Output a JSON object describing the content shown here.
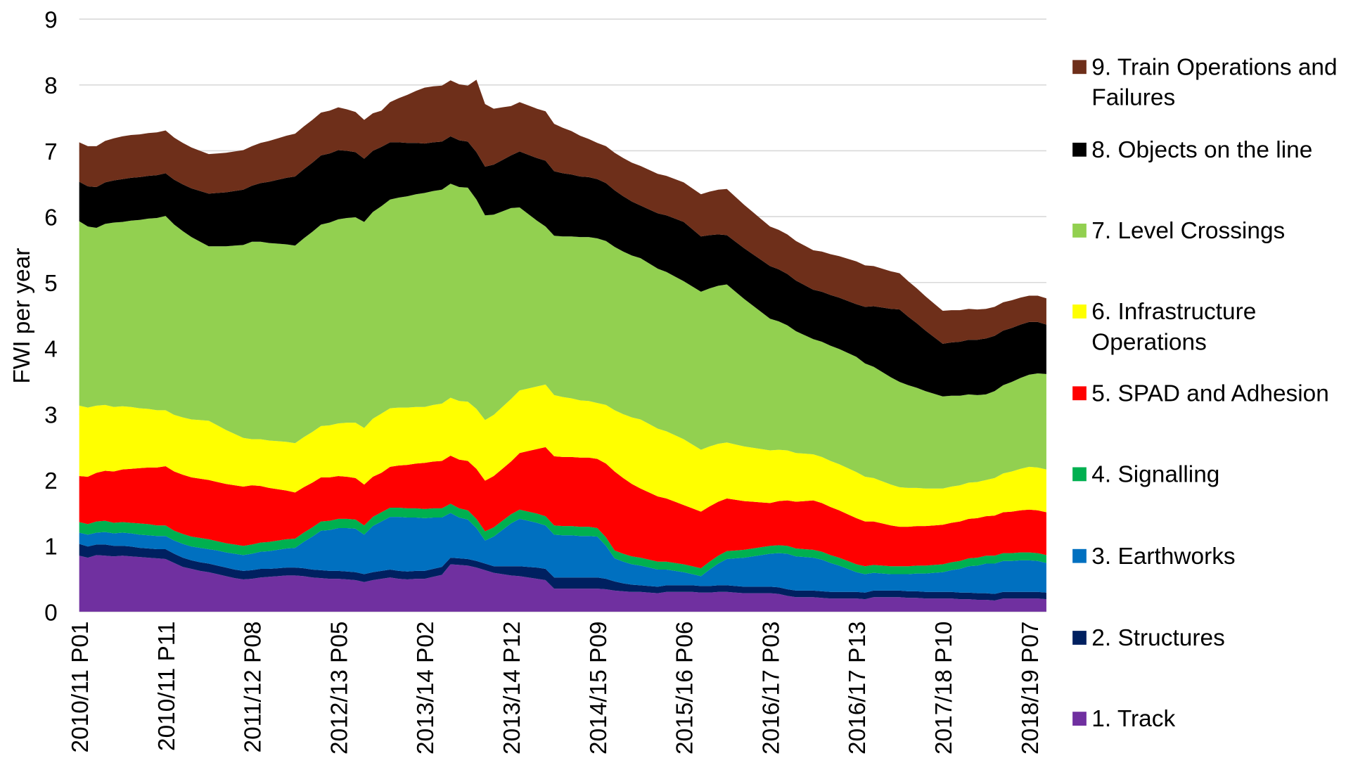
{
  "chart_data": {
    "type": "stacked-area",
    "y_label": "FWI per year",
    "ylim": [
      0,
      9
    ],
    "yticks": [
      0,
      1,
      2,
      3,
      4,
      5,
      6,
      7,
      8,
      9
    ],
    "grid": true,
    "categories": [
      "2010/11 P01",
      null,
      null,
      null,
      null,
      null,
      null,
      null,
      null,
      null,
      "2010/11 P11",
      null,
      null,
      null,
      null,
      null,
      null,
      null,
      null,
      null,
      "2011/12 P08",
      null,
      null,
      null,
      null,
      null,
      null,
      null,
      null,
      null,
      "2012/13 P05",
      null,
      null,
      null,
      null,
      null,
      null,
      null,
      null,
      null,
      "2013/14 P02",
      null,
      null,
      null,
      null,
      null,
      null,
      null,
      null,
      null,
      "2013/14 P12",
      null,
      null,
      null,
      null,
      null,
      null,
      null,
      null,
      null,
      "2014/15 P09",
      null,
      null,
      null,
      null,
      null,
      null,
      null,
      null,
      null,
      "2015/16 P06",
      null,
      null,
      null,
      null,
      null,
      null,
      null,
      null,
      null,
      "2016/17 P03",
      null,
      null,
      null,
      null,
      null,
      null,
      null,
      null,
      null,
      "2016/17 P13",
      null,
      null,
      null,
      null,
      null,
      null,
      null,
      null,
      null,
      "2017/18 P10",
      null,
      null,
      null,
      null,
      null,
      null,
      null,
      null,
      null,
      "2018/19 P07",
      null,
      null
    ],
    "series": [
      {
        "name": "1. Track",
        "color": "#7030a0",
        "values": [
          0.85,
          0.82,
          0.86,
          0.85,
          0.84,
          0.85,
          0.84,
          0.83,
          0.82,
          0.81,
          0.8,
          0.74,
          0.68,
          0.65,
          0.62,
          0.6,
          0.57,
          0.54,
          0.51,
          0.49,
          0.5,
          0.52,
          0.53,
          0.54,
          0.55,
          0.55,
          0.54,
          0.52,
          0.51,
          0.5,
          0.5,
          0.49,
          0.48,
          0.45,
          0.48,
          0.5,
          0.52,
          0.5,
          0.49,
          0.5,
          0.5,
          0.53,
          0.56,
          0.72,
          0.71,
          0.7,
          0.67,
          0.63,
          0.59,
          0.57,
          0.55,
          0.54,
          0.52,
          0.5,
          0.48,
          0.35,
          0.35,
          0.35,
          0.35,
          0.35,
          0.35,
          0.34,
          0.32,
          0.31,
          0.3,
          0.3,
          0.29,
          0.28,
          0.3,
          0.3,
          0.3,
          0.3,
          0.29,
          0.29,
          0.3,
          0.3,
          0.29,
          0.28,
          0.28,
          0.28,
          0.28,
          0.27,
          0.24,
          0.22,
          0.22,
          0.22,
          0.21,
          0.2,
          0.2,
          0.2,
          0.2,
          0.19,
          0.22,
          0.22,
          0.22,
          0.22,
          0.21,
          0.21,
          0.2,
          0.2,
          0.2,
          0.2,
          0.19,
          0.19,
          0.18,
          0.18,
          0.17,
          0.2,
          0.2,
          0.2,
          0.2,
          0.2,
          0.19
        ]
      },
      {
        "name": "2. Structures",
        "color": "#002060",
        "values": [
          0.18,
          0.17,
          0.16,
          0.17,
          0.16,
          0.15,
          0.15,
          0.14,
          0.14,
          0.14,
          0.15,
          0.14,
          0.14,
          0.13,
          0.13,
          0.13,
          0.13,
          0.13,
          0.13,
          0.13,
          0.13,
          0.13,
          0.12,
          0.12,
          0.12,
          0.12,
          0.12,
          0.12,
          0.12,
          0.12,
          0.12,
          0.12,
          0.12,
          0.12,
          0.12,
          0.12,
          0.12,
          0.12,
          0.12,
          0.12,
          0.12,
          0.12,
          0.12,
          0.1,
          0.1,
          0.1,
          0.1,
          0.1,
          0.1,
          0.12,
          0.14,
          0.15,
          0.16,
          0.17,
          0.17,
          0.17,
          0.17,
          0.17,
          0.17,
          0.17,
          0.17,
          0.16,
          0.14,
          0.12,
          0.11,
          0.1,
          0.1,
          0.1,
          0.1,
          0.1,
          0.1,
          0.1,
          0.1,
          0.1,
          0.1,
          0.1,
          0.1,
          0.1,
          0.1,
          0.1,
          0.1,
          0.1,
          0.1,
          0.1,
          0.1,
          0.1,
          0.1,
          0.1,
          0.1,
          0.1,
          0.1,
          0.1,
          0.1,
          0.1,
          0.1,
          0.1,
          0.1,
          0.1,
          0.1,
          0.1,
          0.1,
          0.1,
          0.1,
          0.1,
          0.1,
          0.1,
          0.1,
          0.1,
          0.1,
          0.1,
          0.1,
          0.1,
          0.1
        ]
      },
      {
        "name": "3. Earthworks",
        "color": "#0070c0",
        "values": [
          0.17,
          0.18,
          0.18,
          0.19,
          0.19,
          0.2,
          0.2,
          0.2,
          0.2,
          0.2,
          0.2,
          0.2,
          0.21,
          0.21,
          0.22,
          0.22,
          0.23,
          0.23,
          0.24,
          0.24,
          0.25,
          0.26,
          0.27,
          0.28,
          0.29,
          0.3,
          0.4,
          0.5,
          0.6,
          0.62,
          0.65,
          0.66,
          0.66,
          0.6,
          0.7,
          0.75,
          0.8,
          0.82,
          0.82,
          0.81,
          0.8,
          0.78,
          0.75,
          0.68,
          0.62,
          0.6,
          0.5,
          0.35,
          0.45,
          0.55,
          0.65,
          0.72,
          0.7,
          0.68,
          0.66,
          0.65,
          0.64,
          0.64,
          0.63,
          0.63,
          0.62,
          0.5,
          0.35,
          0.33,
          0.31,
          0.3,
          0.28,
          0.26,
          0.24,
          0.22,
          0.2,
          0.17,
          0.15,
          0.25,
          0.33,
          0.4,
          0.42,
          0.44,
          0.46,
          0.48,
          0.5,
          0.52,
          0.54,
          0.52,
          0.51,
          0.5,
          0.48,
          0.44,
          0.4,
          0.35,
          0.3,
          0.28,
          0.27,
          0.26,
          0.25,
          0.25,
          0.26,
          0.27,
          0.28,
          0.29,
          0.3,
          0.33,
          0.36,
          0.4,
          0.42,
          0.45,
          0.46,
          0.47,
          0.47,
          0.48,
          0.48,
          0.47,
          0.45
        ]
      },
      {
        "name": "4. Signalling",
        "color": "#00b050",
        "values": [
          0.16,
          0.16,
          0.17,
          0.17,
          0.16,
          0.16,
          0.16,
          0.17,
          0.17,
          0.16,
          0.16,
          0.15,
          0.15,
          0.15,
          0.15,
          0.15,
          0.14,
          0.14,
          0.14,
          0.14,
          0.14,
          0.14,
          0.14,
          0.14,
          0.14,
          0.14,
          0.14,
          0.14,
          0.14,
          0.14,
          0.14,
          0.14,
          0.14,
          0.14,
          0.14,
          0.14,
          0.14,
          0.14,
          0.14,
          0.14,
          0.14,
          0.14,
          0.14,
          0.14,
          0.14,
          0.14,
          0.14,
          0.14,
          0.14,
          0.14,
          0.14,
          0.14,
          0.14,
          0.14,
          0.14,
          0.14,
          0.14,
          0.14,
          0.14,
          0.14,
          0.13,
          0.13,
          0.12,
          0.12,
          0.12,
          0.12,
          0.12,
          0.12,
          0.12,
          0.12,
          0.12,
          0.12,
          0.12,
          0.12,
          0.12,
          0.12,
          0.12,
          0.12,
          0.12,
          0.12,
          0.12,
          0.12,
          0.12,
          0.12,
          0.12,
          0.12,
          0.12,
          0.12,
          0.12,
          0.12,
          0.12,
          0.12,
          0.12,
          0.12,
          0.12,
          0.12,
          0.12,
          0.12,
          0.12,
          0.12,
          0.12,
          0.12,
          0.12,
          0.12,
          0.12,
          0.12,
          0.12,
          0.12,
          0.12,
          0.12,
          0.12,
          0.12,
          0.12
        ]
      },
      {
        "name": "5. SPAD and Adhesion",
        "color": "#ff0000",
        "values": [
          0.7,
          0.72,
          0.74,
          0.76,
          0.78,
          0.8,
          0.82,
          0.84,
          0.86,
          0.88,
          0.9,
          0.9,
          0.9,
          0.9,
          0.9,
          0.9,
          0.9,
          0.9,
          0.9,
          0.9,
          0.9,
          0.86,
          0.82,
          0.78,
          0.74,
          0.7,
          0.69,
          0.68,
          0.67,
          0.66,
          0.65,
          0.64,
          0.63,
          0.62,
          0.61,
          0.6,
          0.62,
          0.64,
          0.66,
          0.68,
          0.7,
          0.71,
          0.72,
          0.73,
          0.74,
          0.75,
          0.76,
          0.77,
          0.78,
          0.79,
          0.8,
          0.86,
          0.92,
          0.98,
          1.05,
          1.05,
          1.05,
          1.05,
          1.05,
          1.05,
          1.05,
          1.12,
          1.2,
          1.15,
          1.1,
          1.05,
          1.02,
          0.99,
          0.96,
          0.93,
          0.9,
          0.88,
          0.86,
          0.84,
          0.82,
          0.8,
          0.77,
          0.74,
          0.71,
          0.68,
          0.65,
          0.67,
          0.69,
          0.71,
          0.73,
          0.75,
          0.74,
          0.73,
          0.72,
          0.71,
          0.7,
          0.68,
          0.66,
          0.64,
          0.62,
          0.6,
          0.6,
          0.6,
          0.6,
          0.6,
          0.6,
          0.6,
          0.6,
          0.6,
          0.6,
          0.6,
          0.61,
          0.62,
          0.63,
          0.64,
          0.65,
          0.65,
          0.65
        ]
      },
      {
        "name": "6. Infrastructure Operations",
        "color": "#ffff00",
        "values": [
          1.07,
          1.05,
          1.02,
          1.0,
          0.98,
          0.96,
          0.94,
          0.91,
          0.89,
          0.87,
          0.85,
          0.86,
          0.87,
          0.88,
          0.89,
          0.9,
          0.86,
          0.82,
          0.78,
          0.74,
          0.7,
          0.71,
          0.72,
          0.73,
          0.74,
          0.75,
          0.76,
          0.77,
          0.78,
          0.79,
          0.8,
          0.82,
          0.84,
          0.86,
          0.88,
          0.9,
          0.89,
          0.88,
          0.87,
          0.86,
          0.85,
          0.86,
          0.87,
          0.88,
          0.89,
          0.9,
          0.91,
          0.92,
          0.93,
          0.94,
          0.95,
          0.95,
          0.95,
          0.95,
          0.95,
          0.93,
          0.91,
          0.89,
          0.87,
          0.86,
          0.85,
          0.89,
          0.93,
          0.97,
          1.01,
          1.05,
          1.04,
          1.03,
          1.02,
          1.01,
          1.0,
          0.97,
          0.94,
          0.91,
          0.88,
          0.85,
          0.84,
          0.83,
          0.82,
          0.81,
          0.8,
          0.78,
          0.76,
          0.74,
          0.72,
          0.7,
          0.7,
          0.7,
          0.7,
          0.7,
          0.7,
          0.68,
          0.66,
          0.64,
          0.62,
          0.6,
          0.59,
          0.58,
          0.57,
          0.56,
          0.55,
          0.55,
          0.55,
          0.55,
          0.55,
          0.55,
          0.57,
          0.59,
          0.61,
          0.63,
          0.65,
          0.65,
          0.65
        ]
      },
      {
        "name": "7. Level Crossings",
        "color": "#92d050",
        "values": [
          2.8,
          2.75,
          2.7,
          2.75,
          2.8,
          2.8,
          2.83,
          2.86,
          2.89,
          2.92,
          2.95,
          2.89,
          2.83,
          2.77,
          2.71,
          2.65,
          2.72,
          2.79,
          2.86,
          2.93,
          3.0,
          3.0,
          3.0,
          3.0,
          3.0,
          3.0,
          3.02,
          3.04,
          3.06,
          3.08,
          3.1,
          3.11,
          3.12,
          3.13,
          3.14,
          3.15,
          3.17,
          3.19,
          3.21,
          3.23,
          3.25,
          3.25,
          3.25,
          3.25,
          3.25,
          3.25,
          3.18,
          3.11,
          3.04,
          2.97,
          2.9,
          2.78,
          2.65,
          2.52,
          2.4,
          2.42,
          2.44,
          2.46,
          2.48,
          2.49,
          2.5,
          2.49,
          2.48,
          2.47,
          2.46,
          2.45,
          2.44,
          2.43,
          2.42,
          2.41,
          2.4,
          2.4,
          2.4,
          2.4,
          2.4,
          2.4,
          2.32,
          2.24,
          2.16,
          2.08,
          2.0,
          1.95,
          1.9,
          1.85,
          1.8,
          1.75,
          1.75,
          1.75,
          1.75,
          1.75,
          1.75,
          1.72,
          1.69,
          1.66,
          1.63,
          1.6,
          1.56,
          1.52,
          1.48,
          1.44,
          1.4,
          1.38,
          1.36,
          1.34,
          1.32,
          1.3,
          1.32,
          1.34,
          1.36,
          1.38,
          1.4,
          1.43,
          1.45
        ]
      },
      {
        "name": "8. Objects on the line",
        "color": "#000000",
        "values": [
          0.6,
          0.61,
          0.62,
          0.63,
          0.64,
          0.65,
          0.65,
          0.65,
          0.65,
          0.65,
          0.65,
          0.68,
          0.71,
          0.74,
          0.77,
          0.8,
          0.81,
          0.82,
          0.83,
          0.84,
          0.85,
          0.89,
          0.93,
          0.97,
          1.01,
          1.05,
          1.05,
          1.05,
          1.05,
          1.05,
          1.05,
          1.02,
          0.99,
          0.96,
          0.93,
          0.9,
          0.87,
          0.84,
          0.81,
          0.78,
          0.75,
          0.74,
          0.73,
          0.72,
          0.71,
          0.7,
          0.72,
          0.74,
          0.76,
          0.78,
          0.8,
          0.85,
          0.9,
          0.95,
          1.0,
          0.98,
          0.96,
          0.94,
          0.92,
          0.91,
          0.9,
          0.88,
          0.86,
          0.84,
          0.82,
          0.8,
          0.82,
          0.84,
          0.86,
          0.88,
          0.9,
          0.87,
          0.84,
          0.81,
          0.78,
          0.75,
          0.76,
          0.77,
          0.78,
          0.79,
          0.8,
          0.79,
          0.78,
          0.77,
          0.76,
          0.75,
          0.76,
          0.77,
          0.78,
          0.79,
          0.8,
          0.86,
          0.92,
          0.98,
          1.04,
          1.1,
          1.04,
          0.98,
          0.92,
          0.86,
          0.8,
          0.81,
          0.82,
          0.83,
          0.84,
          0.85,
          0.84,
          0.83,
          0.82,
          0.81,
          0.8,
          0.78,
          0.75
        ]
      },
      {
        "name": "9. Train Operations and Failures",
        "color": "#6e2f1a",
        "values": [
          0.6,
          0.61,
          0.62,
          0.63,
          0.64,
          0.65,
          0.65,
          0.65,
          0.65,
          0.65,
          0.65,
          0.64,
          0.63,
          0.62,
          0.61,
          0.6,
          0.6,
          0.6,
          0.6,
          0.6,
          0.6,
          0.61,
          0.62,
          0.63,
          0.64,
          0.65,
          0.65,
          0.65,
          0.65,
          0.65,
          0.65,
          0.63,
          0.61,
          0.59,
          0.57,
          0.55,
          0.61,
          0.67,
          0.73,
          0.79,
          0.85,
          0.85,
          0.85,
          0.85,
          0.85,
          0.85,
          1.1,
          0.95,
          0.85,
          0.8,
          0.75,
          0.75,
          0.75,
          0.75,
          0.75,
          0.72,
          0.69,
          0.66,
          0.62,
          0.58,
          0.55,
          0.56,
          0.57,
          0.58,
          0.59,
          0.6,
          0.6,
          0.6,
          0.6,
          0.6,
          0.6,
          0.62,
          0.64,
          0.66,
          0.68,
          0.7,
          0.68,
          0.66,
          0.64,
          0.62,
          0.6,
          0.6,
          0.6,
          0.6,
          0.6,
          0.6,
          0.61,
          0.62,
          0.63,
          0.64,
          0.65,
          0.63,
          0.61,
          0.59,
          0.57,
          0.55,
          0.54,
          0.53,
          0.52,
          0.51,
          0.5,
          0.49,
          0.48,
          0.47,
          0.46,
          0.45,
          0.44,
          0.43,
          0.42,
          0.41,
          0.4,
          0.4,
          0.4
        ]
      }
    ]
  }
}
